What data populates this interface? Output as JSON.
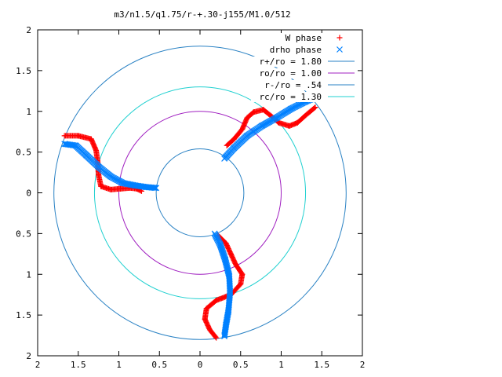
{
  "chart_data": {
    "type": "scatter",
    "title": "m3/n1.5/q1.75/r-+.30-j155/M1.0/512",
    "xlim": [
      -2,
      2
    ],
    "ylim": [
      -2,
      2
    ],
    "grid": false,
    "legend_position": "top-right",
    "x_ticks": [
      {
        "value": -2,
        "label": "2"
      },
      {
        "value": -1.5,
        "label": "1.5"
      },
      {
        "value": -1,
        "label": "1"
      },
      {
        "value": -0.5,
        "label": "0.5"
      },
      {
        "value": 0,
        "label": "0"
      },
      {
        "value": 0.5,
        "label": "0.5"
      },
      {
        "value": 1,
        "label": "1"
      },
      {
        "value": 1.5,
        "label": "1.5"
      },
      {
        "value": 2,
        "label": "2"
      }
    ],
    "y_ticks": [
      {
        "value": 2,
        "label": "2"
      },
      {
        "value": 1.5,
        "label": "1.5"
      },
      {
        "value": 1,
        "label": "1"
      },
      {
        "value": 0.5,
        "label": "0.5"
      },
      {
        "value": 0,
        "label": "0"
      },
      {
        "value": -0.5,
        "label": "0.5"
      },
      {
        "value": -1,
        "label": "1"
      },
      {
        "value": -1.5,
        "label": "1.5"
      },
      {
        "value": -2,
        "label": "2"
      }
    ],
    "legend": [
      {
        "label": "W phase",
        "kind": "points",
        "marker": "+",
        "color": "#ff0000"
      },
      {
        "label": "drho phase",
        "kind": "points",
        "marker": "x",
        "color": "#0080ff"
      },
      {
        "label": "r+/ro = 1.80",
        "kind": "line",
        "color": "#2a82c4"
      },
      {
        "label": "ro/ro = 1.00",
        "kind": "line",
        "color": "#a020c0"
      },
      {
        "label": "r-/ro = .54",
        "kind": "line",
        "color": "#2a82c4"
      },
      {
        "label": "rc/ro = 1.30",
        "kind": "line",
        "color": "#20d0d0"
      }
    ],
    "circles": [
      {
        "name": "r+/ro",
        "radius": 1.8,
        "color": "#2a82c4"
      },
      {
        "name": "ro/ro",
        "radius": 1.0,
        "color": "#a020c0"
      },
      {
        "name": "r-/ro",
        "radius": 0.54,
        "color": "#2a82c4"
      },
      {
        "name": "rc/ro",
        "radius": 1.3,
        "color": "#20d0d0"
      }
    ],
    "series": [
      {
        "name": "W phase",
        "color": "#ff0000",
        "arms": [
          [
            [
              0.33,
              0.58
            ],
            [
              0.42,
              0.66
            ],
            [
              0.52,
              0.78
            ],
            [
              0.58,
              0.92
            ],
            [
              0.66,
              0.99
            ],
            [
              0.78,
              1.02
            ],
            [
              0.88,
              0.94
            ],
            [
              0.97,
              0.86
            ],
            [
              1.1,
              0.82
            ],
            [
              1.2,
              0.86
            ],
            [
              1.3,
              0.95
            ],
            [
              1.42,
              1.05
            ]
          ],
          [
            [
              -0.72,
              0.02
            ],
            [
              -0.78,
              0.05
            ],
            [
              -0.86,
              0.06
            ],
            [
              -0.98,
              0.05
            ],
            [
              -1.1,
              0.04
            ],
            [
              -1.22,
              0.08
            ],
            [
              -1.25,
              0.22
            ],
            [
              -1.26,
              0.38
            ],
            [
              -1.28,
              0.52
            ],
            [
              -1.34,
              0.66
            ],
            [
              -1.5,
              0.7
            ],
            [
              -1.67,
              0.7
            ]
          ],
          [
            [
              0.22,
              -0.52
            ],
            [
              0.32,
              -0.62
            ],
            [
              0.38,
              -0.75
            ],
            [
              0.44,
              -0.88
            ],
            [
              0.52,
              -1.0
            ],
            [
              0.5,
              -1.12
            ],
            [
              0.38,
              -1.25
            ],
            [
              0.2,
              -1.32
            ],
            [
              0.08,
              -1.42
            ],
            [
              0.06,
              -1.55
            ],
            [
              0.12,
              -1.68
            ],
            [
              0.2,
              -1.78
            ]
          ]
        ]
      },
      {
        "name": "drho phase",
        "color": "#0080ff",
        "arms": [
          [
            [
              0.3,
              0.42
            ],
            [
              0.42,
              0.55
            ],
            [
              0.58,
              0.7
            ],
            [
              0.76,
              0.82
            ],
            [
              0.94,
              0.92
            ],
            [
              1.12,
              1.03
            ],
            [
              1.3,
              1.12
            ],
            [
              1.42,
              1.17
            ]
          ],
          [
            [
              -0.54,
              0.06
            ],
            [
              -0.66,
              0.07
            ],
            [
              -0.8,
              0.09
            ],
            [
              -0.95,
              0.12
            ],
            [
              -1.1,
              0.2
            ],
            [
              -1.25,
              0.32
            ],
            [
              -1.4,
              0.46
            ],
            [
              -1.53,
              0.58
            ],
            [
              -1.67,
              0.6
            ]
          ],
          [
            [
              0.18,
              -0.5
            ],
            [
              0.25,
              -0.64
            ],
            [
              0.31,
              -0.82
            ],
            [
              0.36,
              -1.02
            ],
            [
              0.37,
              -1.22
            ],
            [
              0.35,
              -1.45
            ],
            [
              0.32,
              -1.62
            ],
            [
              0.3,
              -1.76
            ]
          ]
        ]
      }
    ]
  }
}
